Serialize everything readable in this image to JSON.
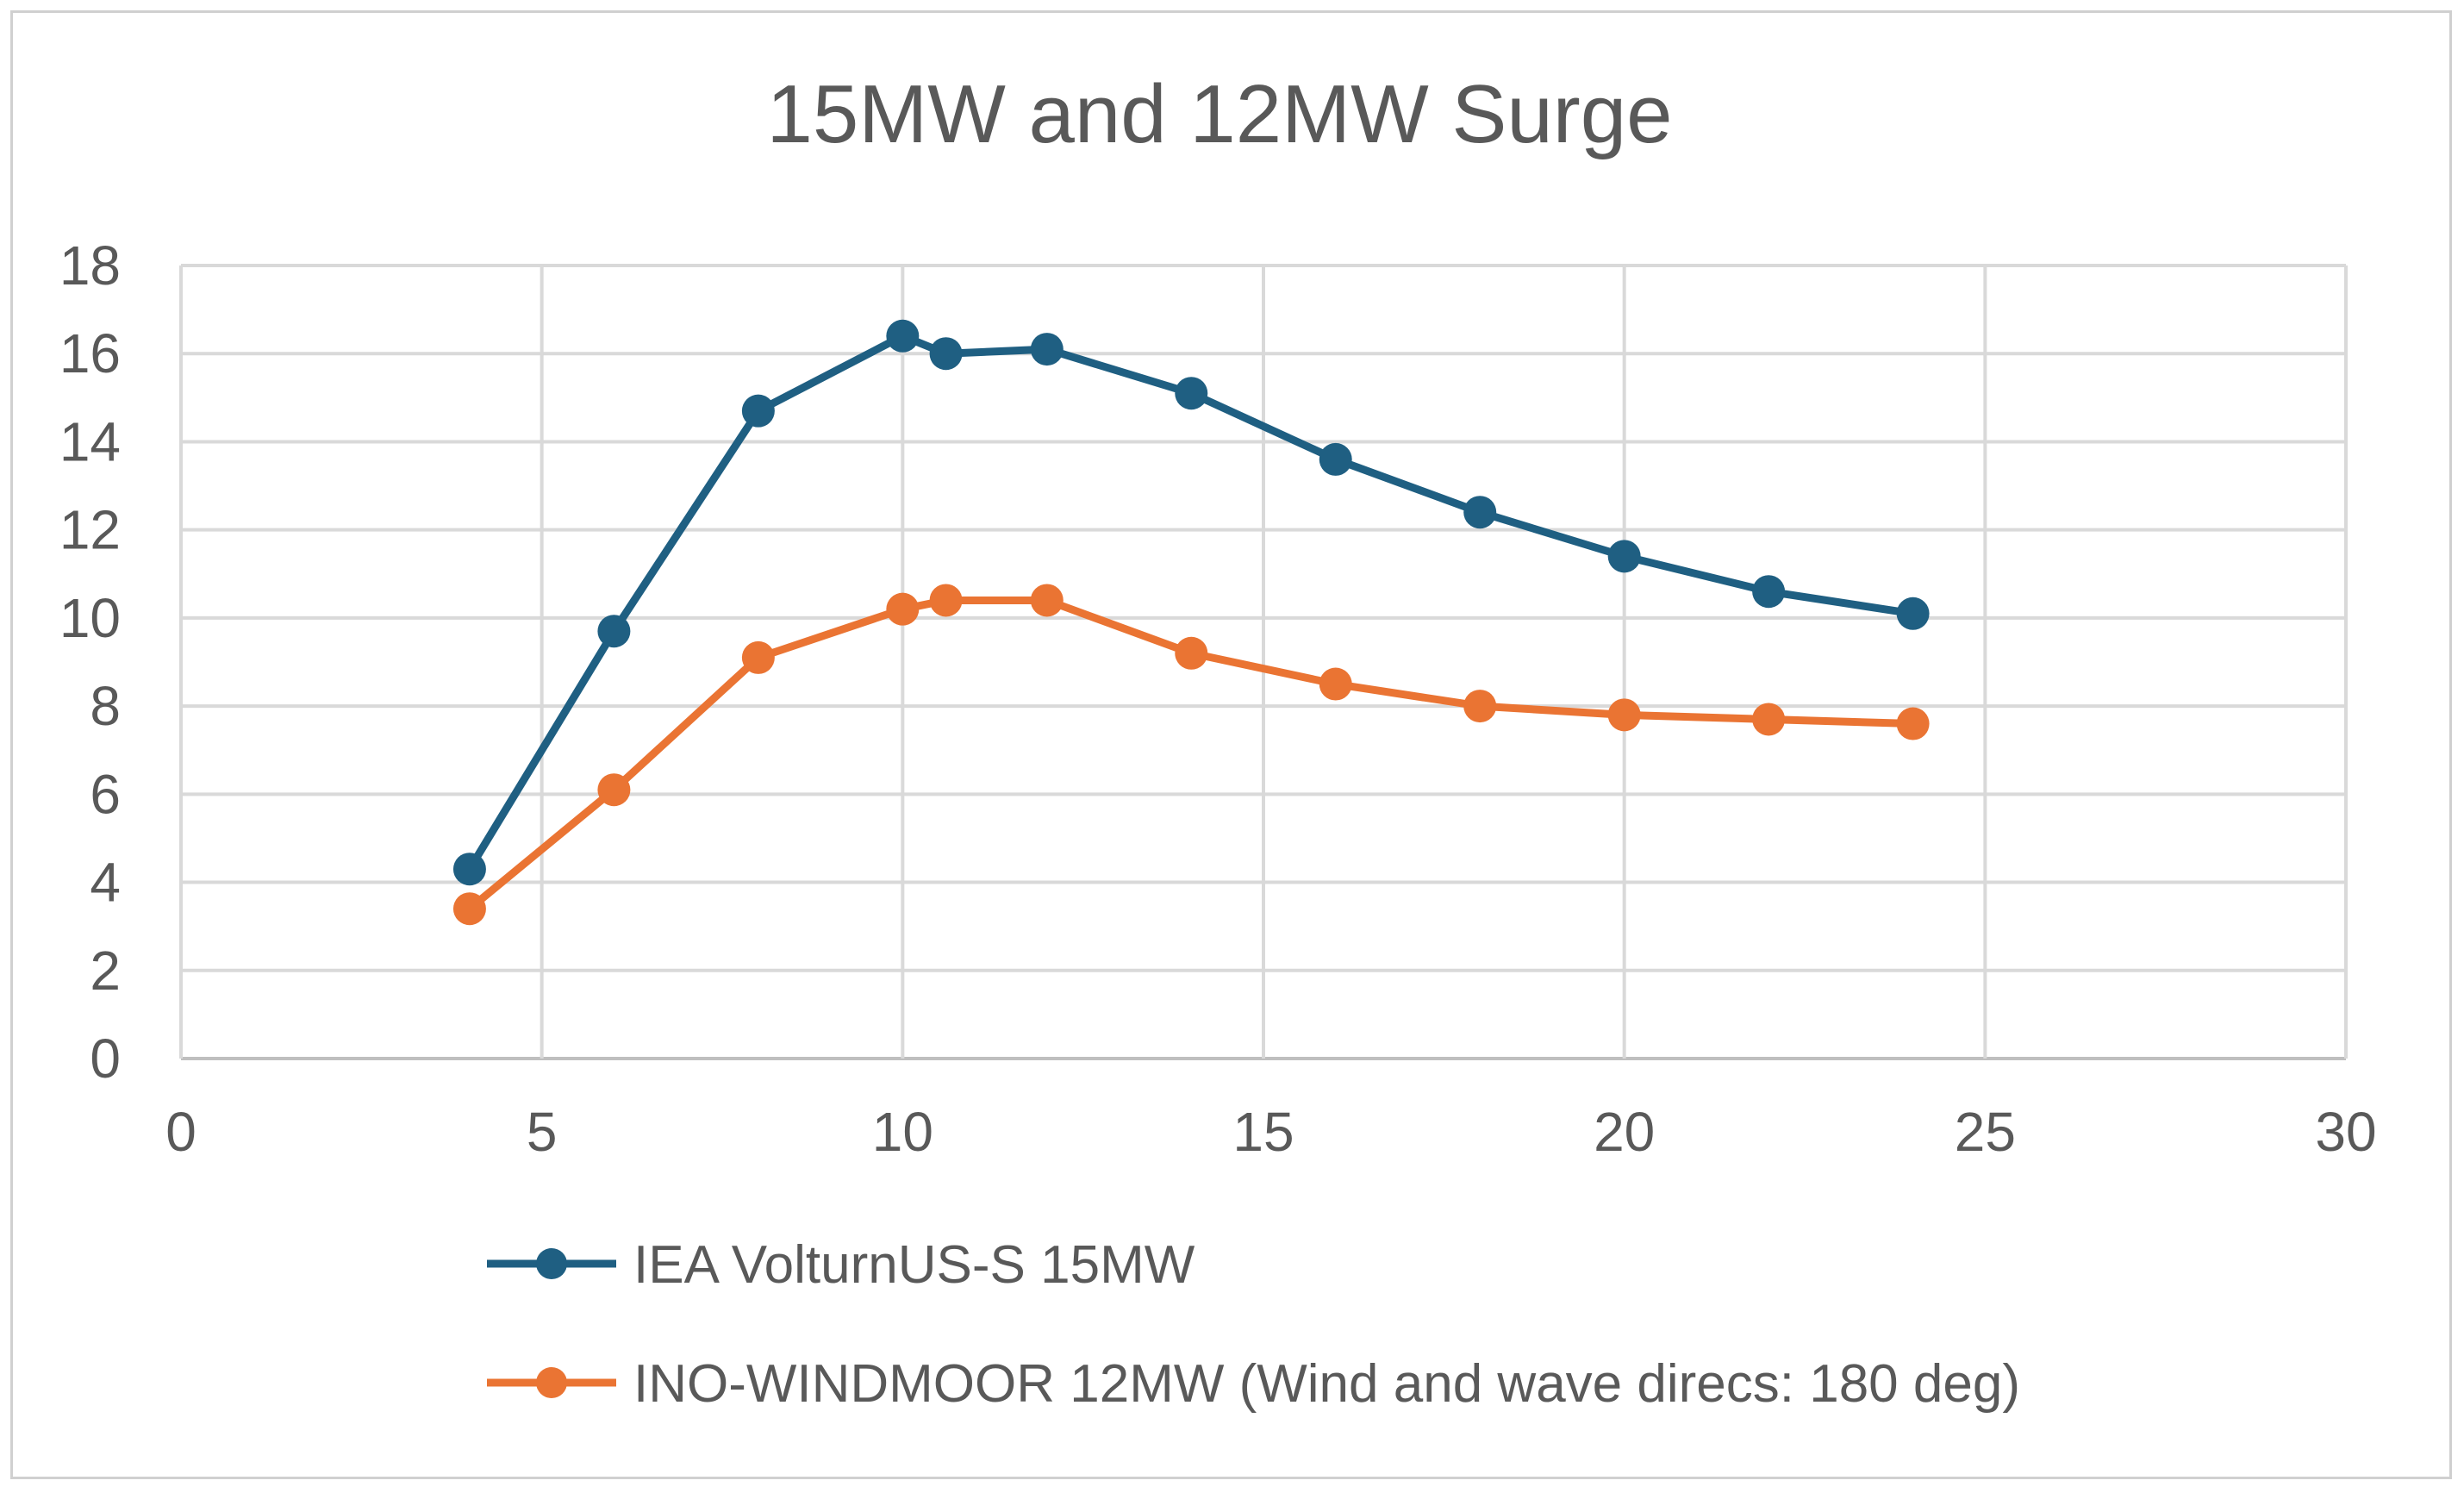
{
  "chart_data": {
    "type": "line",
    "title": "15MW and 12MW Surge",
    "xlabel": "",
    "ylabel": "",
    "xlim": [
      0,
      30
    ],
    "ylim": [
      0,
      18
    ],
    "xticks": [
      "0",
      "5",
      "10",
      "15",
      "20",
      "25",
      "30"
    ],
    "yticks": [
      "0",
      "2",
      "4",
      "6",
      "8",
      "10",
      "12",
      "14",
      "16",
      "18"
    ],
    "grid": true,
    "legend_position": "bottom",
    "series": [
      {
        "name": "IEA VolturnUS-S 15MW",
        "color": "#1f5f82",
        "x": [
          4,
          6,
          8,
          10,
          10.6,
          12,
          14,
          16,
          18,
          20,
          22,
          24
        ],
        "y": [
          4.3,
          9.7,
          14.7,
          16.4,
          16.0,
          16.1,
          15.1,
          13.6,
          12.4,
          11.4,
          10.6,
          10.1
        ]
      },
      {
        "name": "INO-WINDMOOR 12MW (Wind and wave direcs: 180 deg)",
        "color": "#ea7433",
        "x": [
          4,
          6,
          8,
          10,
          10.6,
          12,
          14,
          16,
          18,
          20,
          22,
          24
        ],
        "y": [
          3.4,
          6.1,
          9.1,
          10.2,
          10.4,
          10.4,
          9.2,
          8.5,
          8.0,
          7.8,
          7.7,
          7.6
        ]
      }
    ]
  }
}
